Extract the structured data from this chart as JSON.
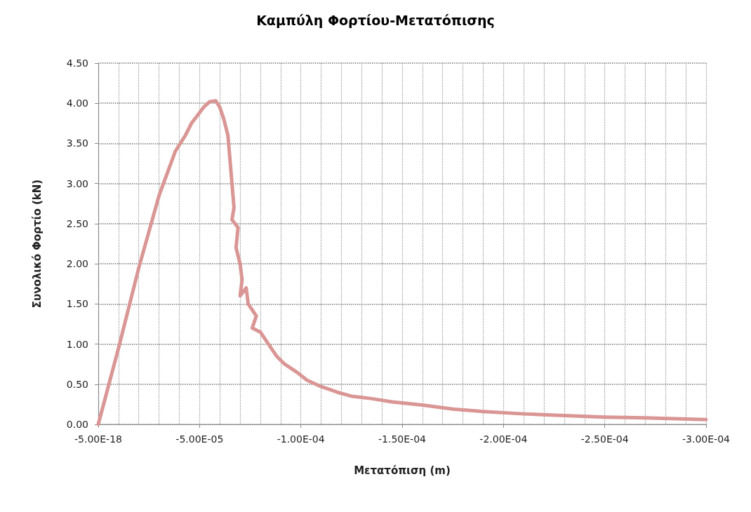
{
  "chart_data": {
    "type": "line",
    "title": "Καμπύλη Φορτίου-Μετατόπισης",
    "xlabel": "Μετατόπιση (m)",
    "ylabel": "Συνολικό Φορτίο (kN)",
    "xlim": [
      -5e-18,
      -0.0003
    ],
    "xticks": [
      {
        "value": -5e-18,
        "label": "-5.00E-18"
      },
      {
        "value": -5e-05,
        "label": "-5.00E-05"
      },
      {
        "value": -0.0001,
        "label": "-1.00E-04"
      },
      {
        "value": -0.00015,
        "label": "-1.50E-04"
      },
      {
        "value": -0.0002,
        "label": "-2.00E-04"
      },
      {
        "value": -0.00025,
        "label": "-2.50E-04"
      },
      {
        "value": -0.0003,
        "label": "-3.00E-04"
      }
    ],
    "ylim": [
      0,
      4.5
    ],
    "yticks": [
      {
        "value": 0,
        "label": "0.00"
      },
      {
        "value": 0.5,
        "label": "0.50"
      },
      {
        "value": 1,
        "label": "1.00"
      },
      {
        "value": 1.5,
        "label": "1.50"
      },
      {
        "value": 2,
        "label": "2.00"
      },
      {
        "value": 2.5,
        "label": "2.50"
      },
      {
        "value": 3,
        "label": "3.00"
      },
      {
        "value": 3.5,
        "label": "3.50"
      },
      {
        "value": 4,
        "label": "4.00"
      },
      {
        "value": 4.5,
        "label": "4.50"
      }
    ],
    "grid": true,
    "marker": "none",
    "line_style": "solid",
    "series": [
      {
        "color": "#d99694",
        "x": [
          -5e-18,
          -1e-05,
          -2e-05,
          -3e-05,
          -3.8e-05,
          -4.3e-05,
          -4.6e-05,
          -4.9e-05,
          -5.2e-05,
          -5.5e-05,
          -5.8e-05,
          -6e-05,
          -6.2e-05,
          -6.4e-05,
          -6.5e-05,
          -6.6e-05,
          -6.7e-05,
          -6.6e-05,
          -6.9e-05,
          -6.8e-05,
          -7e-05,
          -7.1e-05,
          -7e-05,
          -7.3e-05,
          -7.4e-05,
          -7.8e-05,
          -7.6e-05,
          -8e-05,
          -8.4e-05,
          -8.8e-05,
          -9.2e-05,
          -9.8e-05,
          -0.000103,
          -0.00011,
          -0.000118,
          -0.000125,
          -0.000135,
          -0.000145,
          -0.00016,
          -0.000175,
          -0.00019,
          -0.00021,
          -0.00023,
          -0.00025,
          -0.00027,
          -0.0003
        ],
        "values": [
          0,
          0.95,
          1.95,
          2.85,
          3.4,
          3.6,
          3.75,
          3.85,
          3.95,
          4.02,
          4.03,
          3.95,
          3.8,
          3.6,
          3.3,
          3.0,
          2.7,
          2.55,
          2.45,
          2.2,
          2.0,
          1.8,
          1.6,
          1.7,
          1.5,
          1.35,
          1.2,
          1.15,
          1.0,
          0.85,
          0.75,
          0.65,
          0.55,
          0.47,
          0.4,
          0.35,
          0.32,
          0.28,
          0.24,
          0.19,
          0.16,
          0.13,
          0.11,
          0.09,
          0.08,
          0.06
        ]
      }
    ]
  }
}
